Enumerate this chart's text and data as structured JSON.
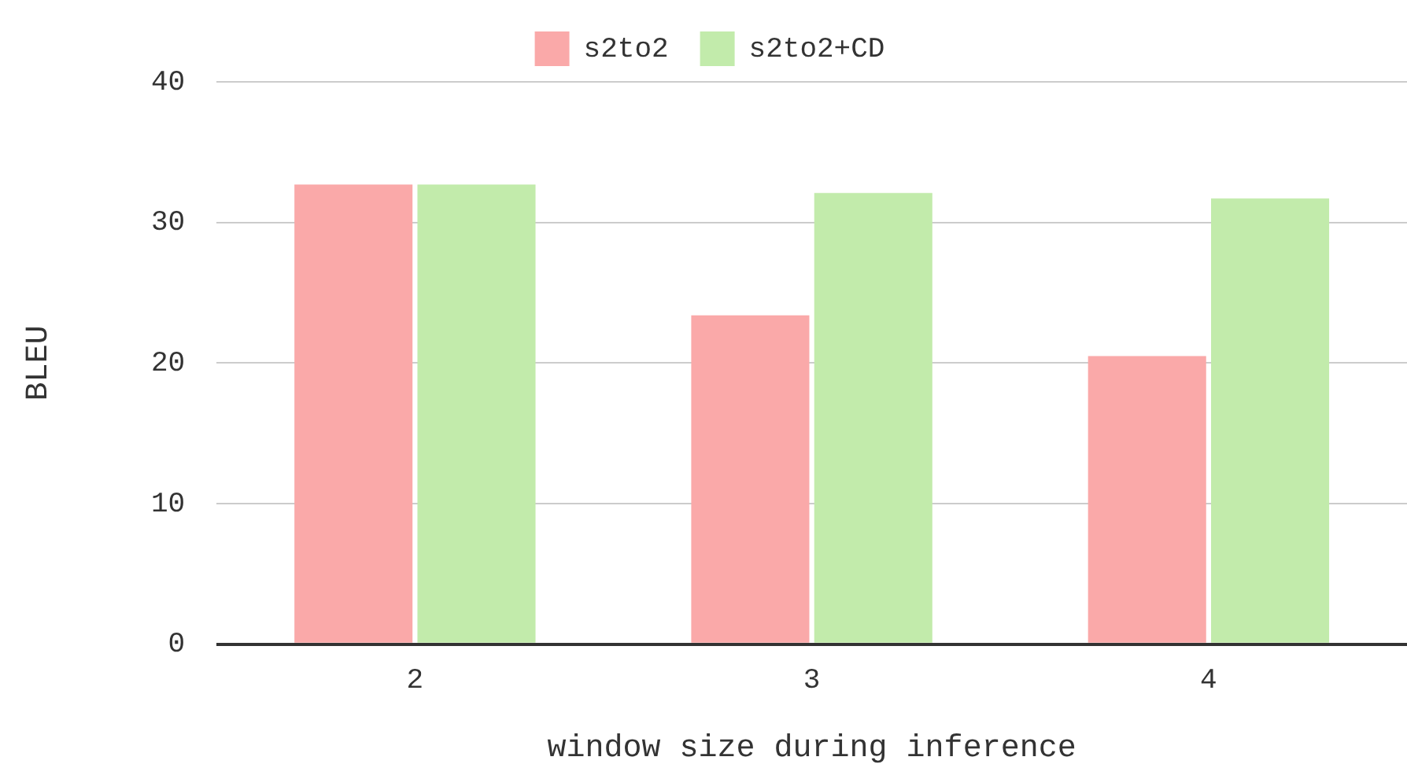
{
  "chart_data": {
    "type": "bar",
    "xlabel": "window size during inference",
    "ylabel": "BLEU",
    "categories": [
      "2",
      "3",
      "4"
    ],
    "series": [
      {
        "name": "s2to2",
        "color": "#faa9a9",
        "values": [
          32.7,
          23.4,
          20.5
        ]
      },
      {
        "name": "s2to2+CD",
        "color": "#c2ebab",
        "values": [
          32.7,
          32.1,
          31.7
        ]
      }
    ],
    "ylim": [
      0,
      40
    ],
    "yticks": [
      0,
      10,
      20,
      30,
      40
    ],
    "grid": "y",
    "legend": "top"
  }
}
